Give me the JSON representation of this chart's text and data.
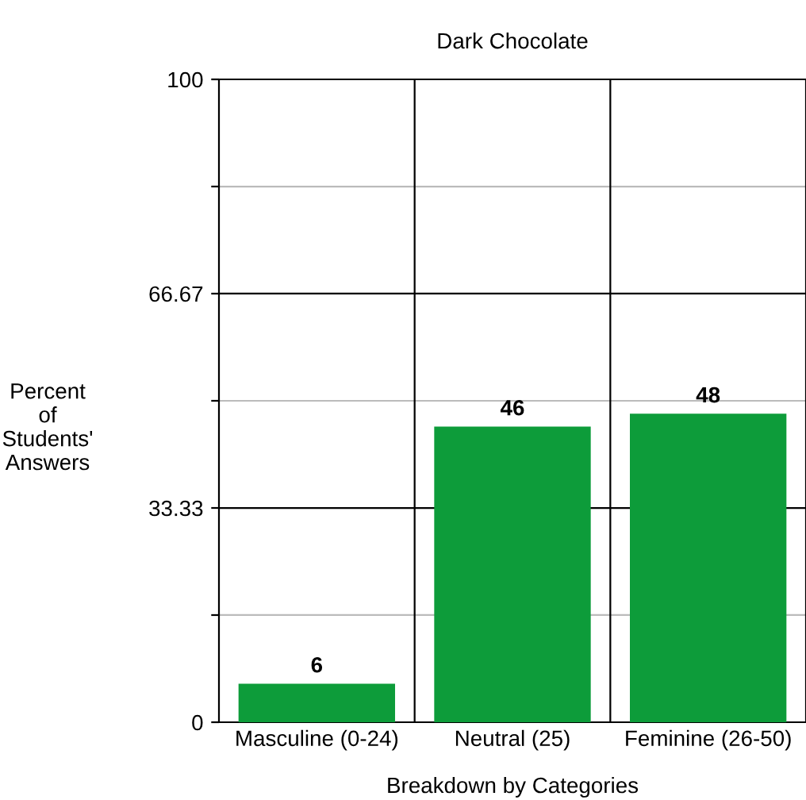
{
  "chart_data": {
    "type": "bar",
    "title": "Dark Chocolate",
    "xlabel": "Breakdown by Categories",
    "ylabel": "Percent\nof\nStudents'\nAnswers",
    "categories": [
      "Masculine (0-24)",
      "Neutral (25)",
      "Feminine (26-50)"
    ],
    "values": [
      6,
      46,
      48
    ],
    "color": "#0d9c3a",
    "data_labels": true,
    "ylim": [
      0,
      100
    ],
    "yticks": [
      0,
      {
        "value": 16.67,
        "label": null
      },
      33.33,
      {
        "value": 50,
        "label": null
      },
      66.67,
      {
        "value": 83.33,
        "label": null
      },
      100
    ],
    "grid": true,
    "legend": false
  }
}
